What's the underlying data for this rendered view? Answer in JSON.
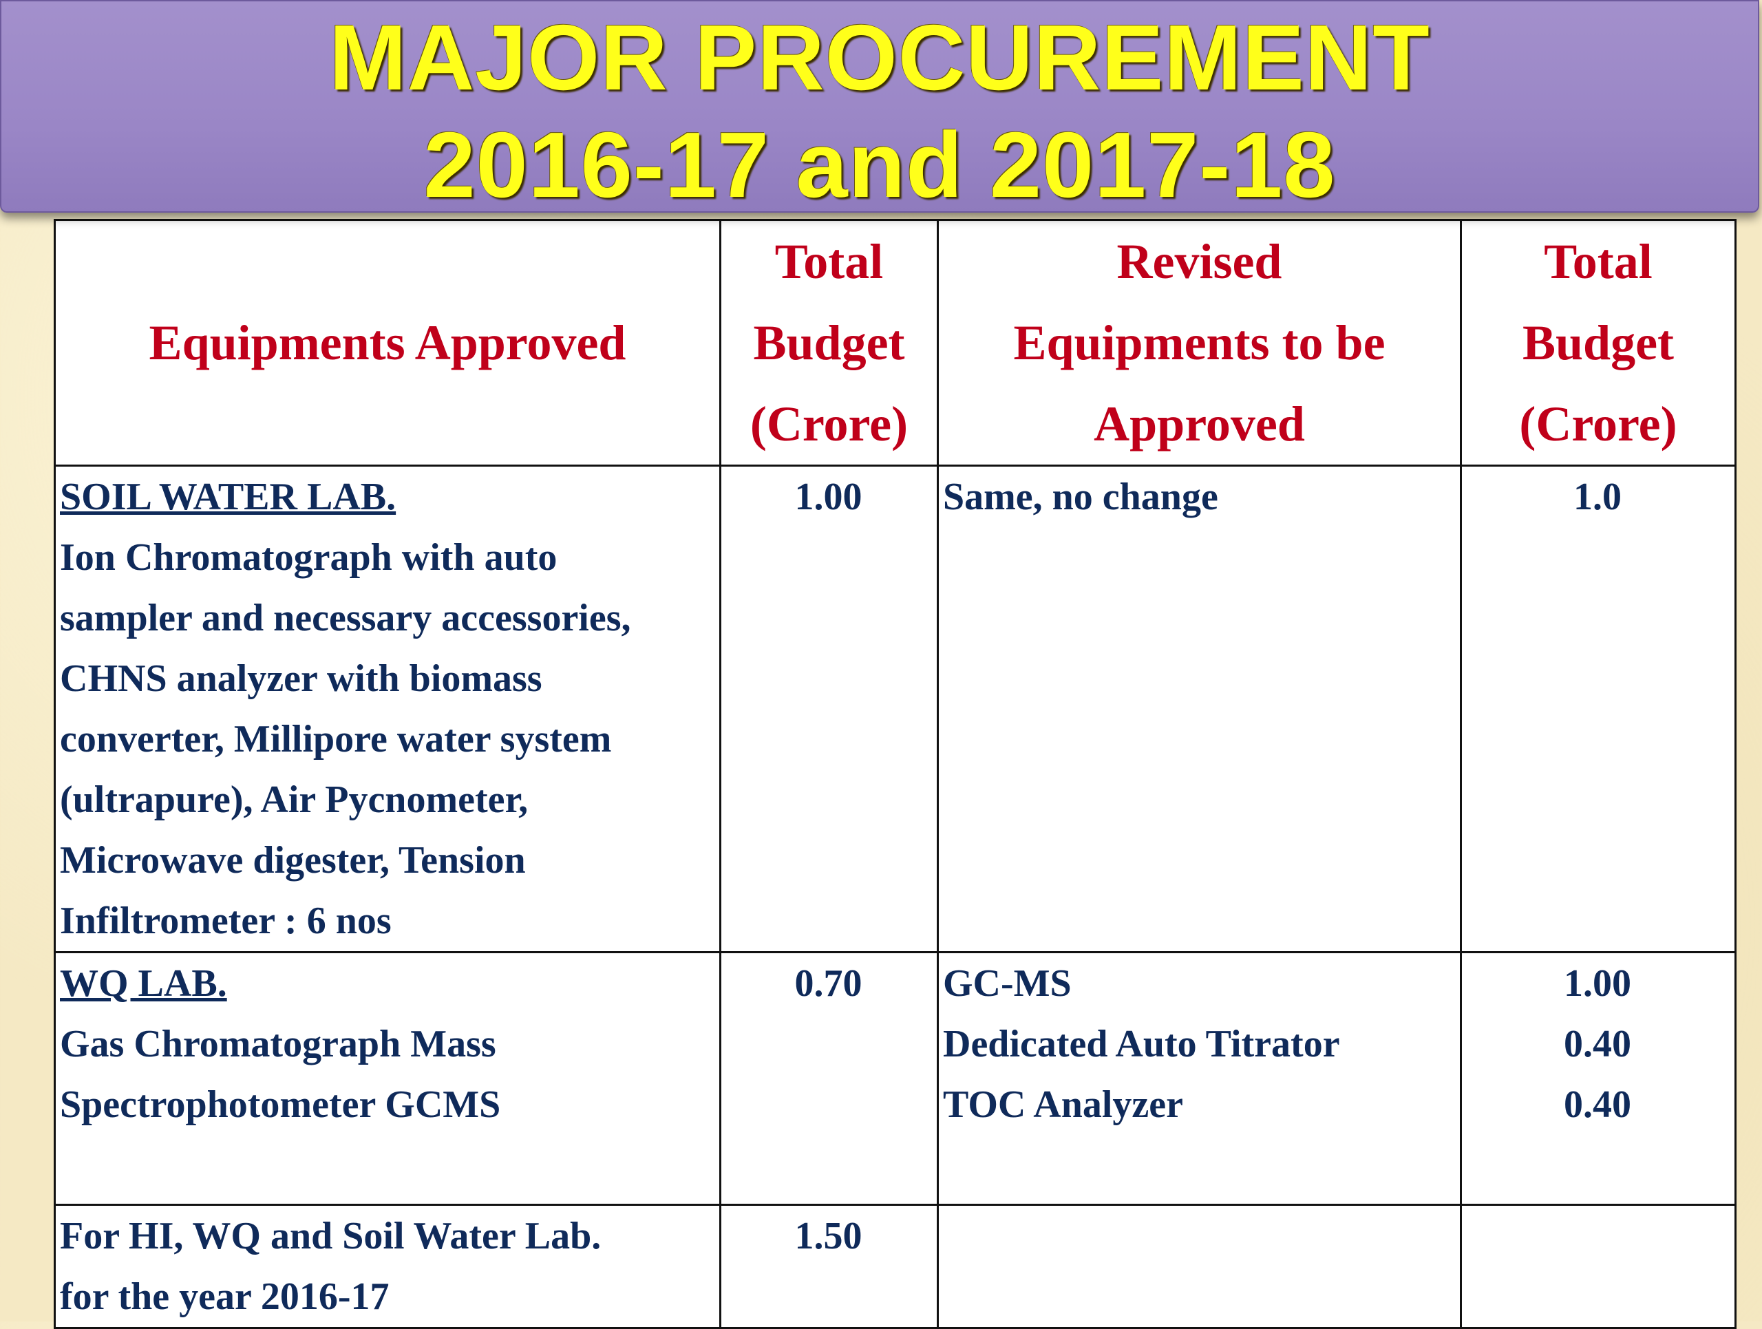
{
  "title": {
    "line1": "MAJOR PROCUREMENT",
    "line2": "2016-17 and 2017-18"
  },
  "table": {
    "headers": {
      "col1": "Equipments Approved",
      "col2": [
        "Total",
        "Budget",
        "(Crore)"
      ],
      "col3": [
        "Revised",
        "Equipments to be",
        "Approved"
      ],
      "col4": [
        "Total",
        "Budget",
        "(Crore)"
      ]
    },
    "rows": [
      {
        "lab": "SOIL WATER LAB.",
        "lines": [
          "Ion Chromatograph with auto",
          "sampler and necessary accessories,",
          "CHNS analyzer with biomass",
          "converter, Millipore water system",
          "(ultrapure),  Air Pycnometer,",
          "Microwave digester, Tension",
          "Infiltrometer : 6 nos"
        ],
        "budget": "1.00",
        "revised": [
          "Same, no change"
        ],
        "revised_budget": [
          "1.0"
        ]
      },
      {
        "lab": "WQ LAB.",
        "lines": [
          "Gas Chromatograph Mass",
          "Spectrophotometer GCMS"
        ],
        "budget": "0.70",
        "revised": [
          "GC-MS",
          "Dedicated Auto Titrator",
          "TOC Analyzer"
        ],
        "revised_budget": [
          "1.00",
          "0.40",
          "0.40"
        ]
      },
      {
        "lab": "",
        "lines": [
          "For HI, WQ and Soil Water Lab.",
          "for the year 2016-17"
        ],
        "budget": "1.50",
        "revised": [],
        "revised_budget": []
      }
    ]
  }
}
